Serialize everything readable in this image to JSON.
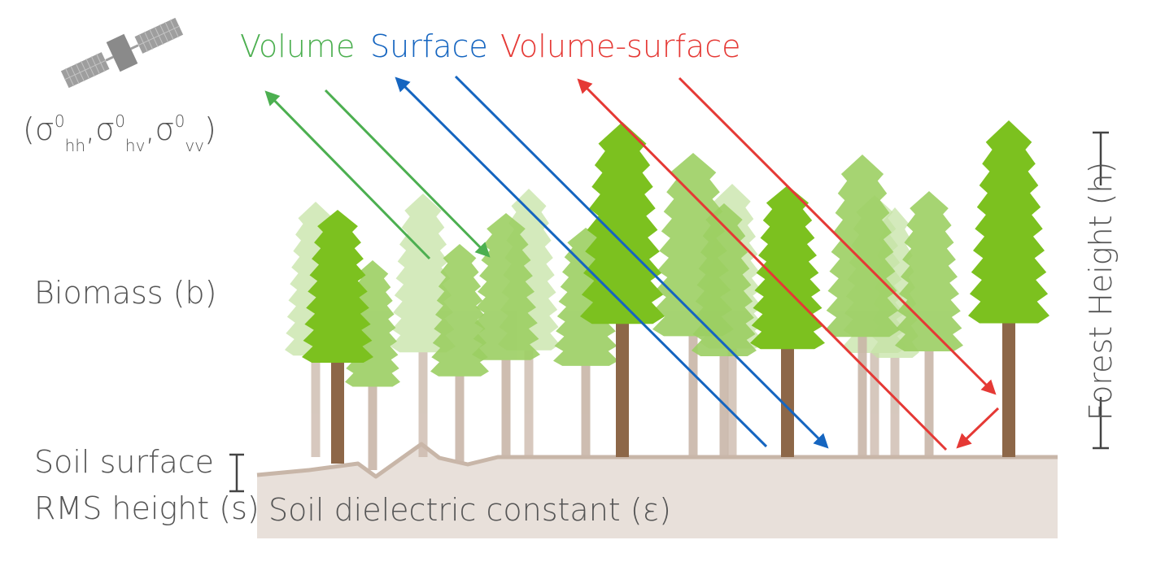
{
  "legend": {
    "volume": "Volume",
    "surface": "Surface",
    "volume_surface": "Volume-surface"
  },
  "colors": {
    "volume": "#4caf50",
    "surface": "#1565c0",
    "volume_surface": "#e53935",
    "tree_dark": "#7cc11f",
    "tree_mid": "#9ccf63",
    "tree_light": "#c6e3a6",
    "trunk_dark": "#8d6748",
    "trunk_light": "#c9b6a8",
    "soil": "#e8e0da",
    "soil_line": "#c8b6a8",
    "text": "#555555"
  },
  "sigma": {
    "open": "(σ",
    "sup": "0",
    "hh": "hh",
    "comma1": ",σ",
    "hv": "hv",
    "comma2": ",σ",
    "vv": "vv",
    "close": ")"
  },
  "labels": {
    "biomass": "Biomass (b)",
    "soil_surface": "Soil surface",
    "rms_height": "RMS height (s)",
    "soil_dielectric": "Soil dielectric constant (ε)",
    "forest_height": "Forest Height (h)"
  },
  "icons": {
    "satellite": "satellite-icon"
  }
}
